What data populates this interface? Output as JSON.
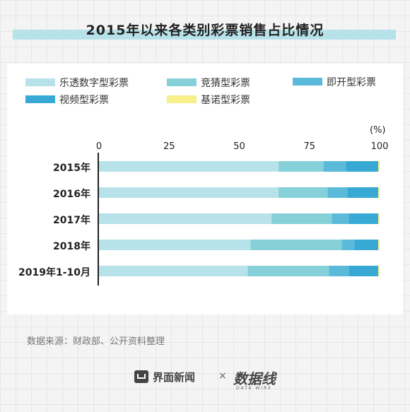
{
  "header": {
    "title": "2015年以来各类别彩票销售占比情况"
  },
  "chart_data": {
    "type": "bar",
    "orientation": "horizontal",
    "stacked": true,
    "categories": [
      "2015年",
      "2016年",
      "2017年",
      "2018年",
      "2019年1-10月"
    ],
    "series": [
      {
        "name": "乐透数字型彩票",
        "color": "#b8e2ea",
        "values": [
          64,
          64,
          61.5,
          54,
          53
        ]
      },
      {
        "name": "竞猜型彩票",
        "color": "#86d0d9",
        "values": [
          16,
          17.5,
          21.5,
          32.5,
          29
        ]
      },
      {
        "name": "即开型彩票",
        "color": "#5bbad9",
        "values": [
          8,
          7,
          6,
          4.5,
          7
        ]
      },
      {
        "name": "视频型彩票",
        "color": "#38a9d4",
        "values": [
          11.5,
          11,
          10.5,
          8.5,
          10.5
        ]
      },
      {
        "name": "基诺型彩票",
        "color": "#f7f08a",
        "values": [
          0.5,
          0.5,
          0.5,
          0.5,
          0.5
        ]
      }
    ],
    "xlim": [
      0,
      100
    ],
    "xticks": [
      "0",
      "25",
      "50",
      "75",
      "100"
    ],
    "unit": "(%)",
    "legend_position": "top",
    "grid": false
  },
  "footer": {
    "source": "数据来源：财政部、公开资料整理",
    "logo1": "界面新闻",
    "times": "×",
    "logo2": "数据线",
    "logo2_sub": "DATA WIRE"
  }
}
